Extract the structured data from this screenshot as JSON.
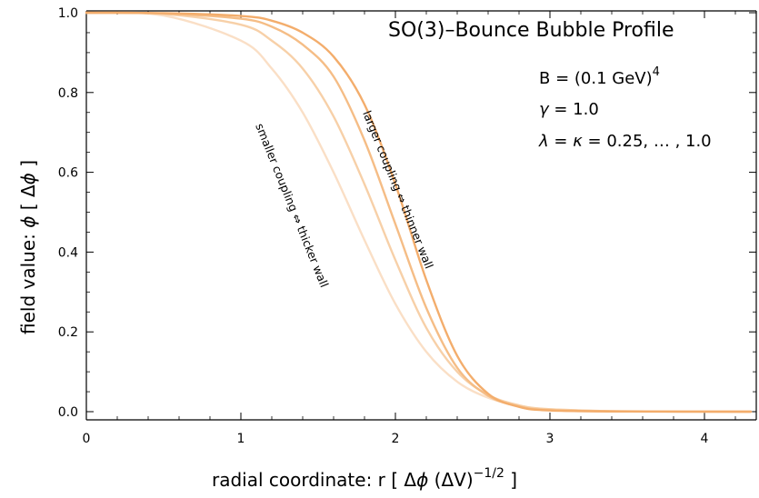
{
  "chart_data": {
    "type": "line",
    "title": "SO(3)–Bounce Bubble Profile",
    "xlabel_main": "radial coordinate:   r  [ Δ",
    "xlabel_phi": "ϕ",
    "xlabel_mid": " (ΔV)",
    "xlabel_sup": "−1/2",
    "xlabel_end": " ]",
    "ylabel_main": "field value:   ",
    "ylabel_phi": "ϕ",
    "ylabel_bracket": "  [ Δ",
    "ylabel_phi2": "ϕ",
    "ylabel_end": " ]",
    "xlim": [
      0,
      4.3
    ],
    "ylim": [
      0,
      1.0
    ],
    "xticks": [
      "0",
      "1",
      "2",
      "3",
      "4"
    ],
    "yticks": [
      "0.0",
      "0.2",
      "0.4",
      "0.6",
      "0.8",
      "1.0"
    ],
    "grid": false,
    "annotations": {
      "B_main": "B = (0.1 GeV)",
      "B_sup": "4",
      "gamma_sym": "γ",
      "gamma_rest": " = 1.0",
      "lambda_sym": "λ",
      "eq": " = ",
      "kappa_sym": "κ",
      "lambda_rest": " = 0.25, … , 1.0",
      "larger": "larger coupling ⇔ thinner wall",
      "smaller": "smaller coupling ⇔ thicker wall"
    },
    "series": [
      {
        "coupling": 0.25,
        "color": "#f9dcc0",
        "opacity": 0.9,
        "x": [
          0,
          0.5,
          1.0,
          1.2,
          1.4,
          1.6,
          1.8,
          2.0,
          2.2,
          2.4,
          2.6,
          2.8,
          3.0,
          3.5,
          4.3
        ],
        "y": [
          1.0,
          0.993,
          0.93,
          0.86,
          0.75,
          0.6,
          0.43,
          0.27,
          0.15,
          0.075,
          0.035,
          0.015,
          0.006,
          0.001,
          0.0
        ]
      },
      {
        "coupling": 0.5,
        "color": "#f7cda3",
        "opacity": 0.95,
        "x": [
          0,
          0.5,
          1.0,
          1.2,
          1.4,
          1.6,
          1.8,
          2.0,
          2.2,
          2.4,
          2.6,
          2.8,
          3.0,
          3.5,
          4.3
        ],
        "y": [
          1.0,
          0.997,
          0.97,
          0.93,
          0.86,
          0.74,
          0.57,
          0.38,
          0.21,
          0.1,
          0.042,
          0.016,
          0.006,
          0.001,
          0.0
        ]
      },
      {
        "coupling": 0.75,
        "color": "#f5bd86",
        "opacity": 1.0,
        "x": [
          0,
          0.5,
          1.0,
          1.2,
          1.4,
          1.6,
          1.8,
          2.0,
          2.2,
          2.4,
          2.6,
          2.8,
          3.0,
          3.5,
          4.3
        ],
        "y": [
          1.0,
          0.998,
          0.985,
          0.965,
          0.92,
          0.84,
          0.68,
          0.47,
          0.26,
          0.11,
          0.04,
          0.013,
          0.004,
          0.0005,
          0.0
        ]
      },
      {
        "coupling": 1.0,
        "color": "#f3ad6c",
        "opacity": 1.0,
        "x": [
          0,
          0.5,
          1.0,
          1.2,
          1.4,
          1.6,
          1.8,
          2.0,
          2.2,
          2.4,
          2.6,
          2.8,
          3.0,
          3.5,
          4.3
        ],
        "y": [
          1.0,
          0.999,
          0.992,
          0.98,
          0.95,
          0.89,
          0.77,
          0.57,
          0.33,
          0.14,
          0.045,
          0.012,
          0.003,
          0.0004,
          0.0
        ]
      }
    ]
  }
}
